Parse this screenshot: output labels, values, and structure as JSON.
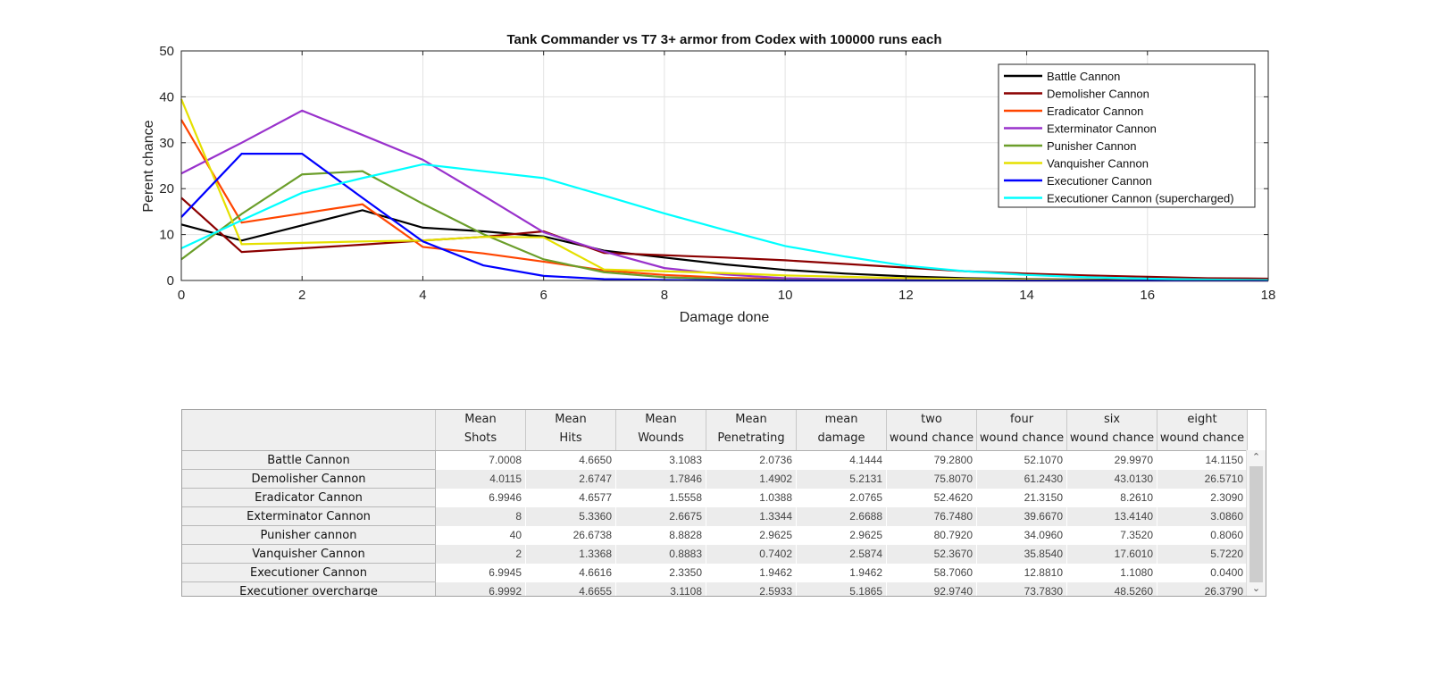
{
  "chart_data": {
    "type": "line",
    "title": "Tank Commander vs T7 3+ armor from Codex with 100000 runs each",
    "xlabel": "Damage done",
    "ylabel": "Perent chance",
    "xlim": [
      0,
      18
    ],
    "ylim": [
      0,
      50
    ],
    "xticks": [
      0,
      2,
      4,
      6,
      8,
      10,
      12,
      14,
      16,
      18
    ],
    "yticks": [
      0,
      10,
      20,
      30,
      40,
      50
    ],
    "grid": true,
    "legend_position": "top-right",
    "x": [
      0,
      1,
      2,
      3,
      4,
      5,
      6,
      7,
      8,
      9,
      10,
      11,
      12,
      13,
      14,
      15,
      16,
      17,
      18
    ],
    "series": [
      {
        "name": "Battle Cannon",
        "color": "#000000",
        "values": [
          12.2,
          8.7,
          12.0,
          15.3,
          11.5,
          10.7,
          9.6,
          6.5,
          5.0,
          3.5,
          2.3,
          1.5,
          0.9,
          0.5,
          0.3,
          0.2,
          0.1,
          0.05,
          0.0
        ]
      },
      {
        "name": "Demolisher Cannon",
        "color": "#8b0000",
        "values": [
          18.0,
          6.2,
          7.0,
          7.8,
          8.7,
          9.5,
          10.7,
          6.0,
          5.5,
          5.0,
          4.4,
          3.6,
          2.8,
          2.0,
          1.5,
          1.1,
          0.8,
          0.5,
          0.4
        ]
      },
      {
        "name": "Eradicator Cannon",
        "color": "#ff4500",
        "values": [
          35.0,
          12.6,
          14.6,
          16.6,
          7.3,
          5.9,
          4.1,
          2.2,
          1.2,
          0.6,
          0.3,
          0.15,
          0.1,
          0.05,
          0,
          0,
          0,
          0,
          0
        ]
      },
      {
        "name": "Exterminator Cannon",
        "color": "#9932cc",
        "values": [
          23.3,
          30.0,
          37.0,
          31.7,
          26.3,
          18.5,
          10.5,
          6.3,
          2.7,
          1.3,
          0.5,
          0.2,
          0.1,
          0.05,
          0,
          0,
          0,
          0,
          0
        ]
      },
      {
        "name": "Punisher Cannon",
        "color": "#6b9e2a",
        "values": [
          4.6,
          14.5,
          23.1,
          23.8,
          16.7,
          10.1,
          4.6,
          1.8,
          0.7,
          0.3,
          0.1,
          0.05,
          0,
          0,
          0,
          0,
          0,
          0,
          0
        ]
      },
      {
        "name": "Vanquisher Cannon",
        "color": "#e5e000",
        "values": [
          39.5,
          7.9,
          8.2,
          8.5,
          8.7,
          9.5,
          9.4,
          2.4,
          2.0,
          1.6,
          1.1,
          0.8,
          0.5,
          0.3,
          0.2,
          0.1,
          0.05,
          0,
          0
        ]
      },
      {
        "name": "Executioner Cannon",
        "color": "#0000ff",
        "values": [
          13.8,
          27.6,
          27.6,
          18.0,
          8.5,
          3.3,
          1.0,
          0.3,
          0.1,
          0.05,
          0,
          0,
          0,
          0,
          0,
          0,
          0,
          0,
          0
        ]
      },
      {
        "name": "Executioner Cannon (supercharged)",
        "color": "#00ffff",
        "values": [
          7.0,
          13.1,
          19.1,
          22.3,
          25.3,
          23.8,
          22.3,
          18.5,
          14.6,
          11.0,
          7.5,
          5.2,
          3.2,
          2.0,
          1.2,
          0.7,
          0.4,
          0.2,
          0.1
        ]
      }
    ]
  },
  "table": {
    "columns": [
      [
        "Mean",
        "Shots"
      ],
      [
        "Mean",
        "Hits"
      ],
      [
        "Mean",
        "Wounds"
      ],
      [
        "Mean",
        "Penetrating"
      ],
      [
        "mean",
        "damage"
      ],
      [
        "two",
        "wound chance"
      ],
      [
        "four",
        "wound chance"
      ],
      [
        "six",
        "wound chance"
      ],
      [
        "eight",
        "wound chance"
      ]
    ],
    "rows": [
      {
        "name": "Battle Cannon",
        "cells": [
          "7.0008",
          "4.6650",
          "3.1083",
          "2.0736",
          "4.1444",
          "79.2800",
          "52.1070",
          "29.9970",
          "14.1150"
        ]
      },
      {
        "name": "Demolisher Cannon",
        "cells": [
          "4.0115",
          "2.6747",
          "1.7846",
          "1.4902",
          "5.2131",
          "75.8070",
          "61.2430",
          "43.0130",
          "26.5710"
        ]
      },
      {
        "name": "Eradicator Cannon",
        "cells": [
          "6.9946",
          "4.6577",
          "1.5558",
          "1.0388",
          "2.0765",
          "52.4620",
          "21.3150",
          "8.2610",
          "2.3090"
        ]
      },
      {
        "name": "Exterminator Cannon",
        "cells": [
          "8",
          "5.3360",
          "2.6675",
          "1.3344",
          "2.6688",
          "76.7480",
          "39.6670",
          "13.4140",
          "3.0860"
        ]
      },
      {
        "name": "Punisher cannon",
        "cells": [
          "40",
          "26.6738",
          "8.8828",
          "2.9625",
          "2.9625",
          "80.7920",
          "34.0960",
          "7.3520",
          "0.8060"
        ]
      },
      {
        "name": "Vanquisher Cannon",
        "cells": [
          "2",
          "1.3368",
          "0.8883",
          "0.7402",
          "2.5874",
          "52.3670",
          "35.8540",
          "17.6010",
          "5.7220"
        ]
      },
      {
        "name": "Executioner Cannon",
        "cells": [
          "6.9945",
          "4.6616",
          "2.3350",
          "1.9462",
          "1.9462",
          "58.7060",
          "12.8810",
          "1.1080",
          "0.0400"
        ]
      },
      {
        "name": "Executioner overcharge",
        "cells": [
          "6.9992",
          "4.6655",
          "3.1108",
          "2.5933",
          "5.1865",
          "92.9740",
          "73.7830",
          "48.5260",
          "26.3790"
        ]
      }
    ],
    "scroll_up_icon": "chevron-up-icon",
    "scroll_down_icon": "chevron-down-icon"
  }
}
